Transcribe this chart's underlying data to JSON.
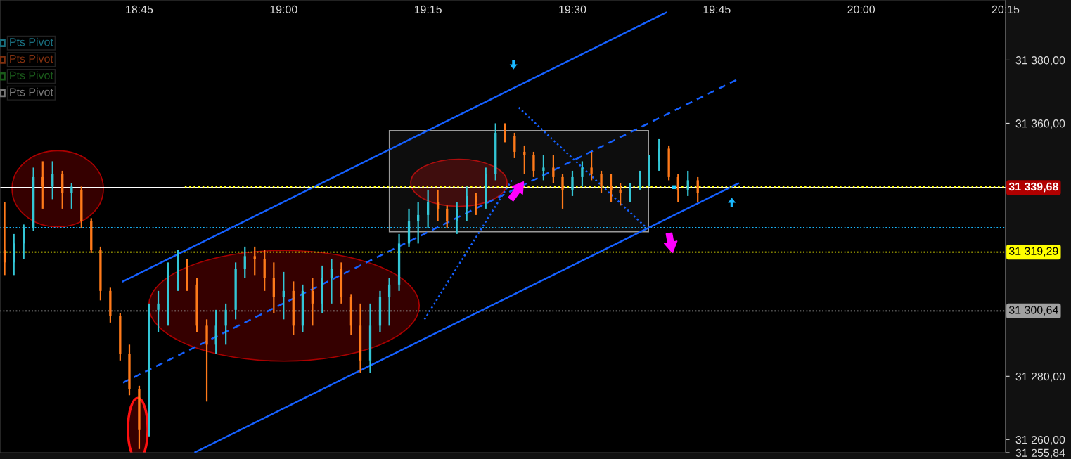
{
  "chart_data": {
    "type": "candlestick",
    "x": [
      18.517,
      18.533,
      18.55,
      18.567,
      18.583,
      18.6,
      18.617,
      18.633,
      18.65,
      18.667,
      18.683,
      18.7,
      18.717,
      18.733,
      18.75,
      18.767,
      18.783,
      18.8,
      18.817,
      18.833,
      18.85,
      18.867,
      18.883,
      18.9,
      18.917,
      18.933,
      18.95,
      18.967,
      18.983,
      19.0,
      19.017,
      19.033,
      19.05,
      19.067,
      19.083,
      19.1,
      19.117,
      19.133,
      19.15,
      19.167,
      19.183,
      19.2,
      19.217,
      19.233,
      19.25,
      19.267,
      19.283,
      19.3,
      19.317,
      19.333,
      19.35,
      19.367,
      19.383,
      19.4,
      19.417,
      19.433,
      19.45,
      19.467,
      19.483,
      19.5,
      19.517,
      19.533,
      19.55,
      19.567,
      19.583,
      19.6,
      19.617,
      19.633,
      19.65,
      19.667,
      19.683,
      19.7,
      19.717
    ],
    "ohlc": [
      [
        31320,
        31335,
        31312,
        31316
      ],
      [
        31316,
        31325,
        31312,
        31322
      ],
      [
        31322,
        31328,
        31317,
        31327
      ],
      [
        31327,
        31346,
        31326,
        31343
      ],
      [
        31343,
        31348,
        31333,
        31340
      ],
      [
        31340,
        31348,
        31336,
        31344
      ],
      [
        31344,
        31345,
        31333,
        31338
      ],
      [
        31338,
        31341,
        31333,
        31340
      ],
      [
        31339,
        31340,
        31327,
        31329
      ],
      [
        31329,
        31330,
        31319,
        31320
      ],
      [
        31320,
        31321,
        31304,
        31307
      ],
      [
        31307,
        31308,
        31297,
        31299
      ],
      [
        31299,
        31300,
        31285,
        31287
      ],
      [
        31287,
        31290,
        31274,
        31276
      ],
      [
        31276,
        31277,
        31257,
        31263
      ],
      [
        31263,
        31303,
        31261,
        31301
      ],
      [
        31301,
        31307,
        31294,
        31303
      ],
      [
        31303,
        31316,
        31296,
        31314
      ],
      [
        31314,
        31320,
        31307,
        31316
      ],
      [
        31316,
        31317,
        31307,
        31309
      ],
      [
        31309,
        31311,
        31294,
        31296
      ],
      [
        31296,
        31298,
        31272,
        31290
      ],
      [
        31290,
        31301,
        31287,
        31296
      ],
      [
        31296,
        31303,
        31290,
        31301
      ],
      [
        31301,
        31316,
        31298,
        31314
      ],
      [
        31314,
        31321,
        31311,
        31318
      ],
      [
        31318,
        31321,
        31312,
        31317
      ],
      [
        31317,
        31320,
        31307,
        31311
      ],
      [
        31311,
        31316,
        31300,
        31305
      ],
      [
        31305,
        31313,
        31298,
        31307
      ],
      [
        31307,
        31310,
        31293,
        31296
      ],
      [
        31296,
        31309,
        31294,
        31307
      ],
      [
        31307,
        31311,
        31296,
        31303
      ],
      [
        31303,
        31315,
        31300,
        31311
      ],
      [
        31311,
        31317,
        31303,
        31314
      ],
      [
        31314,
        31316,
        31303,
        31305
      ],
      [
        31305,
        31306,
        31293,
        31296
      ],
      [
        31296,
        31303,
        31281,
        31285
      ],
      [
        31285,
        31303,
        31281,
        31296
      ],
      [
        31296,
        31307,
        31294,
        31305
      ],
      [
        31305,
        31311,
        31296,
        31309
      ],
      [
        31309,
        31325,
        31307,
        31322
      ],
      [
        31322,
        31333,
        31321,
        31329
      ],
      [
        31329,
        31335,
        31322,
        31331
      ],
      [
        31331,
        31339,
        31327,
        31335
      ],
      [
        31335,
        31339,
        31329,
        31333
      ],
      [
        31333,
        31334,
        31327,
        31329
      ],
      [
        31329,
        31335,
        31325,
        31333
      ],
      [
        31333,
        31340,
        31329,
        31337
      ],
      [
        31337,
        31338,
        31331,
        31335
      ],
      [
        31335,
        31346,
        31333,
        31344
      ],
      [
        31344,
        31360,
        31342,
        31357
      ],
      [
        31357,
        31360,
        31354,
        31356
      ],
      [
        31356,
        31357,
        31349,
        31351
      ],
      [
        31351,
        31353,
        31344,
        31350
      ],
      [
        31350,
        31351,
        31343,
        31345
      ],
      [
        31345,
        31350,
        31342,
        31346
      ],
      [
        31346,
        31350,
        31341,
        31343
      ],
      [
        31343,
        31344,
        31333,
        31339
      ],
      [
        31339,
        31345,
        31337,
        31343
      ],
      [
        31343,
        31348,
        31340,
        31346
      ],
      [
        31346,
        31351,
        31342,
        31344
      ],
      [
        31344,
        31345,
        31338,
        31340
      ],
      [
        31340,
        31344,
        31335,
        31339
      ],
      [
        31339,
        31341,
        31334,
        31338
      ],
      [
        31338,
        31341,
        31335,
        31340
      ],
      [
        31340,
        31345,
        31339,
        31343
      ],
      [
        31343,
        31350,
        31340,
        31348
      ],
      [
        31348,
        31355,
        31345,
        31352
      ],
      [
        31352,
        31353,
        31342,
        31343
      ],
      [
        31343,
        31344,
        31335,
        31339
      ],
      [
        31339,
        31345,
        31337,
        31342
      ],
      [
        31342,
        31343,
        31335,
        31338
      ]
    ],
    "colors": [
      "#ff7a1a",
      "#33c6d6",
      "#33c6d6",
      "#33c6d6",
      "#ff7a1a",
      "#33c6d6",
      "#ff7a1a",
      "#33c6d6",
      "#ff7a1a",
      "#ff7a1a",
      "#ff7a1a",
      "#ff7a1a",
      "#ff7a1a",
      "#ff7a1a",
      "#ff7a1a",
      "#33c6d6",
      "#33c6d6",
      "#33c6d6",
      "#33c6d6",
      "#ff7a1a",
      "#ff7a1a",
      "#ff7a1a",
      "#33c6d6",
      "#33c6d6",
      "#33c6d6",
      "#33c6d6",
      "#ff7a1a",
      "#ff7a1a",
      "#ff7a1a",
      "#33c6d6",
      "#ff7a1a",
      "#33c6d6",
      "#ff7a1a",
      "#33c6d6",
      "#33c6d6",
      "#ff7a1a",
      "#ff7a1a",
      "#ff7a1a",
      "#33c6d6",
      "#33c6d6",
      "#33c6d6",
      "#33c6d6",
      "#33c6d6",
      "#33c6d6",
      "#33c6d6",
      "#ff7a1a",
      "#ff7a1a",
      "#33c6d6",
      "#33c6d6",
      "#ff7a1a",
      "#33c6d6",
      "#33c6d6",
      "#ff7a1a",
      "#ff7a1a",
      "#ff7a1a",
      "#ff7a1a",
      "#33c6d6",
      "#ff7a1a",
      "#ff7a1a",
      "#33c6d6",
      "#33c6d6",
      "#ff7a1a",
      "#ff7a1a",
      "#ff7a1a",
      "#ff7a1a",
      "#33c6d6",
      "#33c6d6",
      "#33c6d6",
      "#33c6d6",
      "#ff7a1a",
      "#ff7a1a",
      "#33c6d6",
      "#ff7a1a"
    ],
    "series": [
      {
        "type": "line",
        "color": "#1560ff",
        "line_style": "solid",
        "x": [
          18.722,
          19.662
        ],
        "values": [
          31310,
          31395
        ]
      },
      {
        "type": "line",
        "color": "#1560ff",
        "line_style": "solid",
        "x": [
          18.847,
          19.787
        ],
        "values": [
          31256,
          31341
        ]
      },
      {
        "type": "line",
        "color": "#1560ff",
        "line_style": "dashed",
        "x": [
          18.722,
          19.787
        ],
        "values": [
          31278,
          31374
        ]
      },
      {
        "type": "line",
        "color": "#1560ff",
        "line_style": "dotted",
        "x": [
          19.244,
          19.395
        ],
        "values": [
          31298,
          31342
        ]
      },
      {
        "type": "line",
        "color": "#1560ff",
        "line_style": "dotted",
        "x": [
          19.407,
          19.628
        ],
        "values": [
          31365,
          31327
        ]
      },
      {
        "type": "line",
        "color": "#ffff00",
        "line_style": "dotted",
        "x": [
          18.829,
          20.25
        ],
        "values": [
          31340,
          31340
        ]
      }
    ],
    "annotations": [
      "Pts Pivot",
      "Pts Pivot",
      "Pts Pivot",
      "Pts Pivot"
    ],
    "ref_lines": [
      {
        "axis": "y",
        "value": 31339.68,
        "label": "31 339,68",
        "color": "#ffffff",
        "line_style": "solid"
      },
      {
        "axis": "y",
        "value": 31327,
        "color": "#1ab8ff",
        "line_style": "dotted"
      },
      {
        "axis": "y",
        "value": 31319.29,
        "label": "31 319,29",
        "color": "#ffff00",
        "line_style": "dotted"
      },
      {
        "axis": "y",
        "value": 31300.64,
        "label": "31 300,64",
        "color": "#a0a0a0",
        "line_style": "dotted"
      }
    ],
    "xlim": [
      18.509,
      20.25
    ],
    "xticks": [
      {
        "value": 18.75,
        "label": "18:45"
      },
      {
        "value": 19.0,
        "label": "19:00"
      },
      {
        "value": 19.25,
        "label": "19:15"
      },
      {
        "value": 19.5,
        "label": "19:30"
      },
      {
        "value": 19.75,
        "label": "19:45"
      },
      {
        "value": 20.0,
        "label": "20:00"
      },
      {
        "value": 20.25,
        "label": "20:15"
      }
    ],
    "ylim": [
      31255.84,
      31399
    ],
    "yticks": [
      {
        "value": 31255.84,
        "label": "31 255,84"
      },
      {
        "value": 31260,
        "label": "31 260,00"
      },
      {
        "value": 31280,
        "label": "31 280,00"
      },
      {
        "value": 31300,
        "label": null
      },
      {
        "value": 31320,
        "label": null
      },
      {
        "value": 31340,
        "label": null
      },
      {
        "value": 31360,
        "label": "31 360,00"
      },
      {
        "value": 31380,
        "label": "31 380,00"
      }
    ],
    "grid": false
  }
}
